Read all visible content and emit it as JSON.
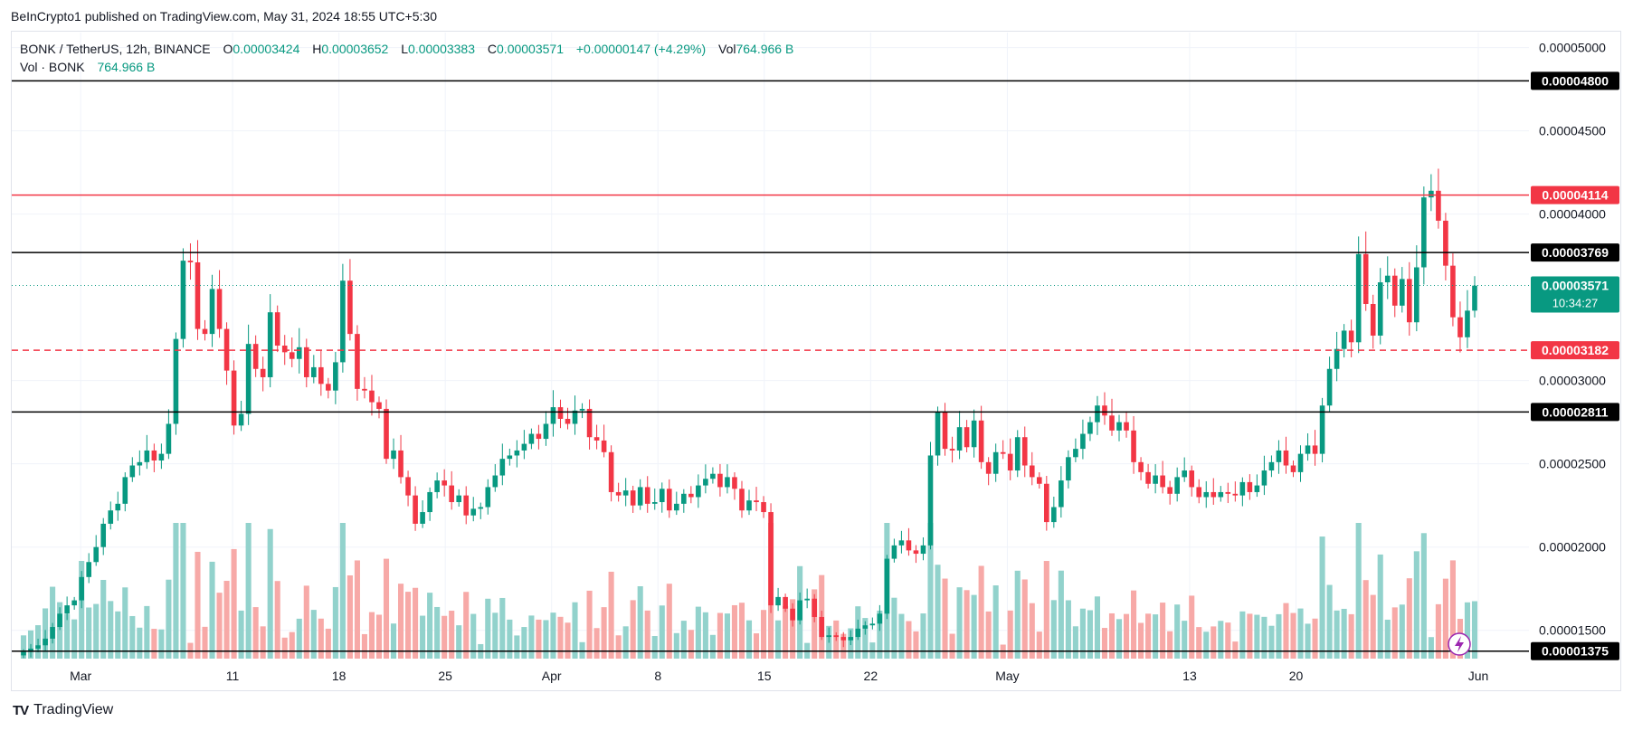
{
  "header": {
    "publisher": "BeInCrypto1 published on TradingView.com, May 31, 2024 18:55 UTC+5:30"
  },
  "legend": {
    "symbol": "BONK / TetherUS, 12h, BINANCE",
    "o_key": "O",
    "o_val": "0.00003424",
    "h_key": "H",
    "h_val": "0.00003652",
    "l_key": "L",
    "l_val": "0.00003383",
    "c_key": "C",
    "c_val": "0.00003571",
    "change": "+0.00000147 (+4.29%)",
    "vol_key": "Vol",
    "vol_val": "764.966 B",
    "vol_series": "Vol · BONK",
    "vol_series_val": "764.966 B"
  },
  "price_axis_ticks": [
    "0.00005000",
    "0.00004500",
    "0.00004000",
    "0.00003000",
    "0.00002500",
    "0.00002000",
    "0.00001500"
  ],
  "levels": [
    {
      "label": "0.00004800",
      "value": 4.8e-05,
      "color": "#000000",
      "style": "solid"
    },
    {
      "label": "0.00004114",
      "value": 4.114e-05,
      "color": "#f23645",
      "style": "solid"
    },
    {
      "label": "0.00003769",
      "value": 3.769e-05,
      "color": "#000000",
      "style": "solid"
    },
    {
      "label": "0.00003182",
      "value": 3.182e-05,
      "color": "#f23645",
      "style": "dashed"
    },
    {
      "label": "0.00002811",
      "value": 2.811e-05,
      "color": "#000000",
      "style": "solid"
    },
    {
      "label": "0.00001375",
      "value": 1.375e-05,
      "color": "#000000",
      "style": "solid"
    }
  ],
  "current_price": {
    "label": "0.00003571",
    "countdown": "10:34:27",
    "value": 3.571e-05,
    "color": "#089981"
  },
  "date_labels": [
    "Mar",
    "11",
    "18",
    "25",
    "Apr",
    "8",
    "15",
    "22",
    "May",
    "13",
    "20",
    "Jun"
  ],
  "footer": {
    "brand": "TradingView",
    "logo_text": "TV"
  },
  "colors": {
    "up": "#089981",
    "down": "#f23645",
    "vol_up": "#92d2cc",
    "vol_down": "#f7a9a7",
    "grid": "#f0f3fa"
  },
  "chart_data": {
    "type": "candlestick",
    "symbol": "BONK / TetherUS",
    "interval": "12h",
    "exchange": "BINANCE",
    "ylim": [
      1.33e-05,
      5.09e-05
    ],
    "x": [
      "2024-02-26",
      "2024-06-01"
    ],
    "x_ticks": [
      {
        "label": "Mar",
        "date": "2024-03-01"
      },
      {
        "label": "11",
        "date": "2024-03-11"
      },
      {
        "label": "18",
        "date": "2024-03-18"
      },
      {
        "label": "25",
        "date": "2024-03-25"
      },
      {
        "label": "Apr",
        "date": "2024-04-01"
      },
      {
        "label": "8",
        "date": "2024-04-08"
      },
      {
        "label": "15",
        "date": "2024-04-15"
      },
      {
        "label": "22",
        "date": "2024-04-22"
      },
      {
        "label": "May",
        "date": "2024-05-01"
      },
      {
        "label": "13",
        "date": "2024-05-13"
      },
      {
        "label": "20",
        "date": "2024-05-20"
      },
      {
        "label": "Jun",
        "date": "2024-06-01"
      }
    ],
    "closes": [
      1.37e-05,
      1.39e-05,
      1.41e-05,
      1.45e-05,
      1.52e-05,
      1.6e-05,
      1.65e-05,
      1.68e-05,
      1.82e-05,
      1.91e-05,
      2e-05,
      2.14e-05,
      2.22e-05,
      2.26e-05,
      2.42e-05,
      2.49e-05,
      2.51e-05,
      2.58e-05,
      2.52e-05,
      2.56e-05,
      2.74e-05,
      3.25e-05,
      3.72e-05,
      3.71e-05,
      3.31e-05,
      3.28e-05,
      3.55e-05,
      3.31e-05,
      3.06e-05,
      2.73e-05,
      2.8e-05,
      3.22e-05,
      3.07e-05,
      3.02e-05,
      3.41e-05,
      3.21e-05,
      3.17e-05,
      3.13e-05,
      3.2e-05,
      3.02e-05,
      3.08e-05,
      2.98e-05,
      2.94e-05,
      3.11e-05,
      3.6e-05,
      3.28e-05,
      2.95e-05,
      2.94e-05,
      2.87e-05,
      2.83e-05,
      2.53e-05,
      2.58e-05,
      2.42e-05,
      2.31e-05,
      2.14e-05,
      2.21e-05,
      2.33e-05,
      2.4e-05,
      2.37e-05,
      2.27e-05,
      2.31e-05,
      2.19e-05,
      2.23e-05,
      2.24e-05,
      2.36e-05,
      2.43e-05,
      2.53e-05,
      2.55e-05,
      2.58e-05,
      2.62e-05,
      2.68e-05,
      2.65e-05,
      2.74e-05,
      2.84e-05,
      2.77e-05,
      2.74e-05,
      2.82e-05,
      2.83e-05,
      2.66e-05,
      2.64e-05,
      2.57e-05,
      2.33e-05,
      2.31e-05,
      2.34e-05,
      2.25e-05,
      2.36e-05,
      2.26e-05,
      2.27e-05,
      2.35e-05,
      2.22e-05,
      2.26e-05,
      2.32e-05,
      2.3e-05,
      2.37e-05,
      2.41e-05,
      2.44e-05,
      2.36e-05,
      2.42e-05,
      2.35e-05,
      2.22e-05,
      2.28e-05,
      2.27e-05,
      2.21e-05,
      1.65e-05,
      1.7e-05,
      1.63e-05,
      1.56e-05,
      1.68e-05,
      1.69e-05,
      1.58e-05,
      1.46e-05,
      1.47e-05,
      1.46e-05,
      1.44e-05,
      1.46e-05,
      1.51e-05,
      1.53e-05,
      1.54e-05,
      1.6e-05,
      1.93e-05,
      2.01e-05,
      2.04e-05,
      1.98e-05,
      1.96e-05,
      2.01e-05,
      2.55e-05,
      2.81e-05,
      2.59e-05,
      2.58e-05,
      2.72e-05,
      2.6e-05,
      2.76e-05,
      2.51e-05,
      2.44e-05,
      2.57e-05,
      2.56e-05,
      2.46e-05,
      2.66e-05,
      2.49e-05,
      2.42e-05,
      2.38e-05,
      2.15e-05,
      2.24e-05,
      2.4e-05,
      2.54e-05,
      2.59e-05,
      2.68e-05,
      2.75e-05,
      2.85e-05,
      2.79e-05,
      2.7e-05,
      2.75e-05,
      2.7e-05,
      2.51e-05,
      2.45e-05,
      2.38e-05,
      2.43e-05,
      2.36e-05,
      2.32e-05,
      2.42e-05,
      2.46e-05,
      2.36e-05,
      2.3e-05,
      2.33e-05,
      2.3e-05,
      2.33e-05,
      2.32e-05,
      2.31e-05,
      2.39e-05,
      2.33e-05,
      2.37e-05,
      2.46e-05,
      2.51e-05,
      2.58e-05,
      2.49e-05,
      2.45e-05,
      2.56e-05,
      2.61e-05,
      2.56e-05,
      2.85e-05,
      3.07e-05,
      3.19e-05,
      3.3e-05,
      3.23e-05,
      3.76e-05,
      3.46e-05,
      3.27e-05,
      3.59e-05,
      3.63e-05,
      3.45e-05,
      3.61e-05,
      3.35e-05,
      3.68e-05,
      4.1e-05,
      4.14e-05,
      3.96e-05,
      3.69e-05,
      3.38e-05,
      3.26e-05,
      3.42e-05,
      3.57e-05
    ],
    "volume_last": "764.966 B",
    "last_close": 3.571e-05
  }
}
